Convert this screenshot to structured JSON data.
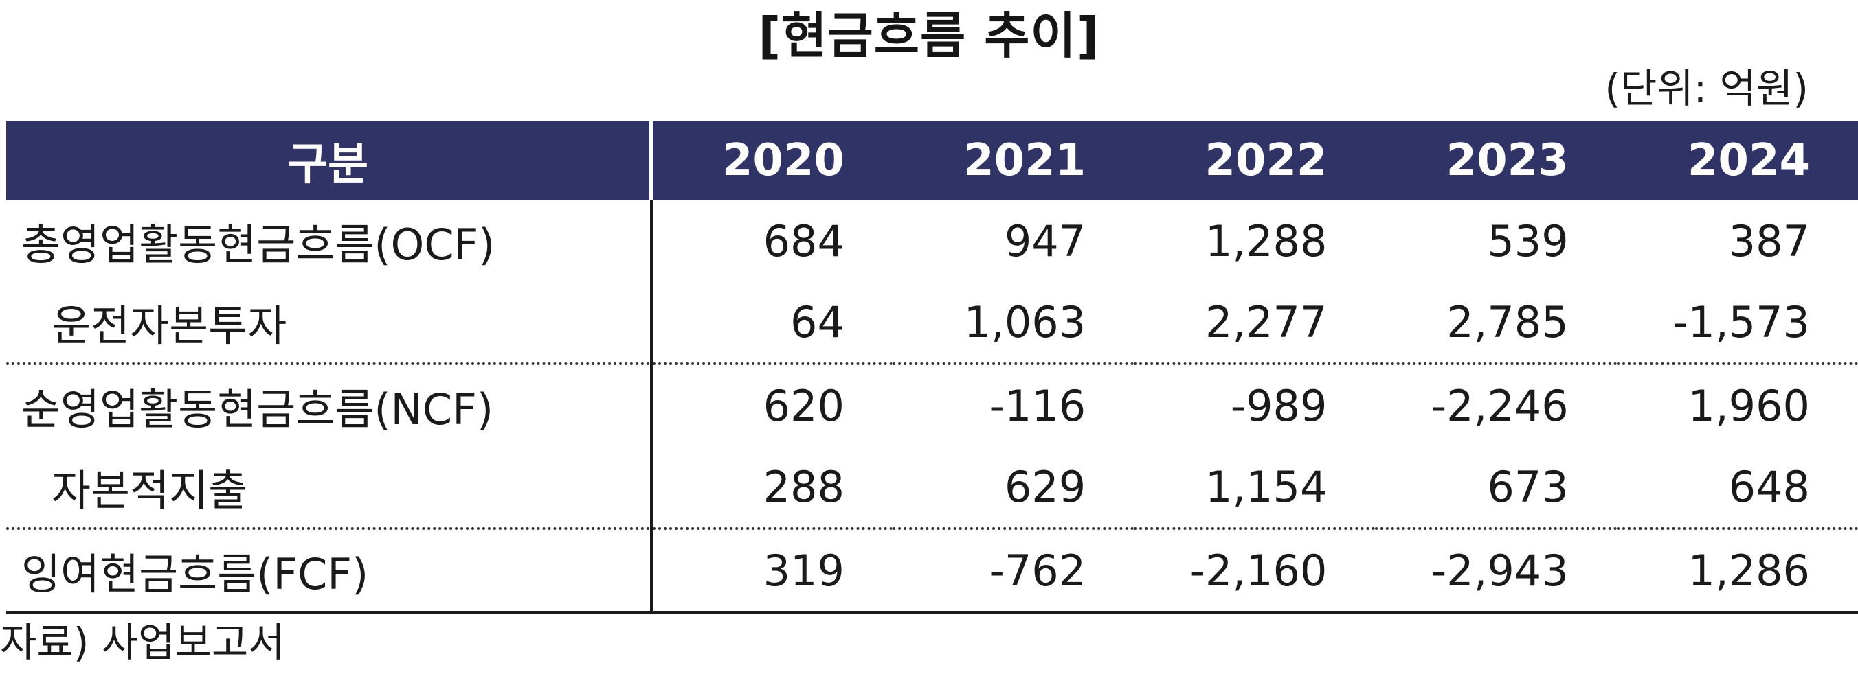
{
  "title": "[현금흐름 추이]",
  "unit": "(단위: 억원)",
  "table": {
    "header": {
      "label": "구분",
      "years": [
        "2020",
        "2021",
        "2022",
        "2023",
        "2024"
      ]
    },
    "rows": [
      {
        "label": "총영업활동현금흐름(OCF)",
        "values": [
          "684",
          "947",
          "1,288",
          "539",
          "387"
        ]
      },
      {
        "label": "운전자본투자",
        "values": [
          "64",
          "1,063",
          "2,277",
          "2,785",
          "-1,573"
        ]
      },
      {
        "label": "순영업활동현금흐름(NCF)",
        "values": [
          "620",
          "-116",
          "-989",
          "-2,246",
          "1,960"
        ]
      },
      {
        "label": "자본적지출",
        "values": [
          "288",
          "629",
          "1,154",
          "673",
          "648"
        ]
      },
      {
        "label": "잉여현금흐름(FCF)",
        "values": [
          "319",
          "-762",
          "-2,160",
          "-2,943",
          "1,286"
        ]
      }
    ]
  },
  "source": "자료) 사업보고서",
  "colors": {
    "header_bg": "#2f3366",
    "header_text": "#ffffff",
    "text": "#1a1a1a"
  }
}
